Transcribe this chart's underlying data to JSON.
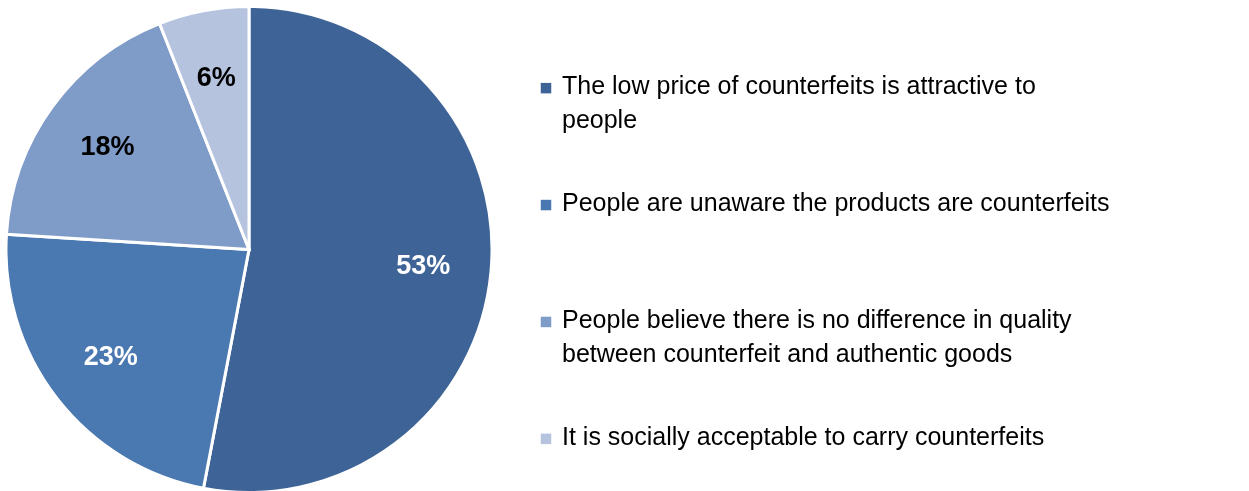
{
  "chart_data": {
    "type": "pie",
    "categories": [
      "The low price of counterfeits is attractive to people",
      "People are unaware the products are counterfeits",
      "People believe there is no difference in quality between counterfeit and authentic goods",
      "It is socially acceptable to carry counterfeits"
    ],
    "values": [
      53,
      23,
      18,
      6
    ],
    "colors": [
      "#3e6497",
      "#4a78b0",
      "#7f9cc9",
      "#b5c3df"
    ],
    "value_labels": [
      "53%",
      "23%",
      "18%",
      "6%"
    ],
    "legend": "right"
  }
}
